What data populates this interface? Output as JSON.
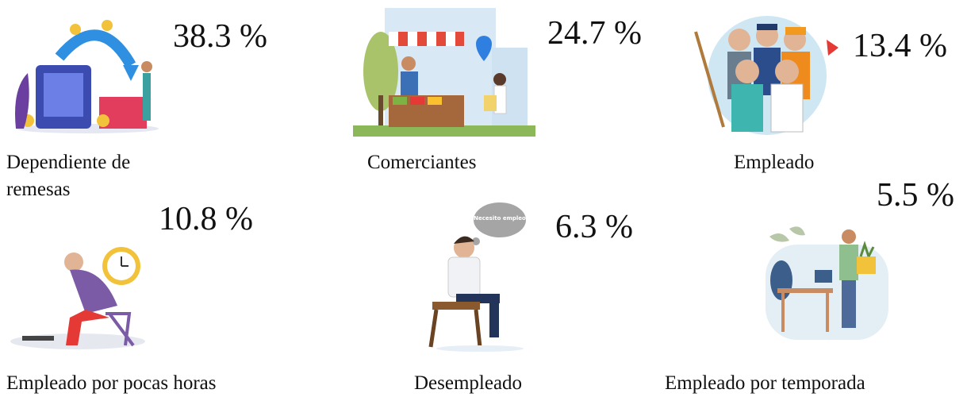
{
  "items": [
    {
      "label": "Dependiente de remesas",
      "percent": "38.3 %"
    },
    {
      "label": "Comerciantes",
      "percent": "24.7 %"
    },
    {
      "label": "Empleado",
      "percent": "13.4 %"
    },
    {
      "label": "Empleado por pocas horas",
      "percent": "10.8 %"
    },
    {
      "label": "Desempleado",
      "percent": "6.3 %",
      "thought": "Necesito empleo"
    },
    {
      "label": "Empleado por temporada",
      "percent": "5.5 %"
    }
  ]
}
